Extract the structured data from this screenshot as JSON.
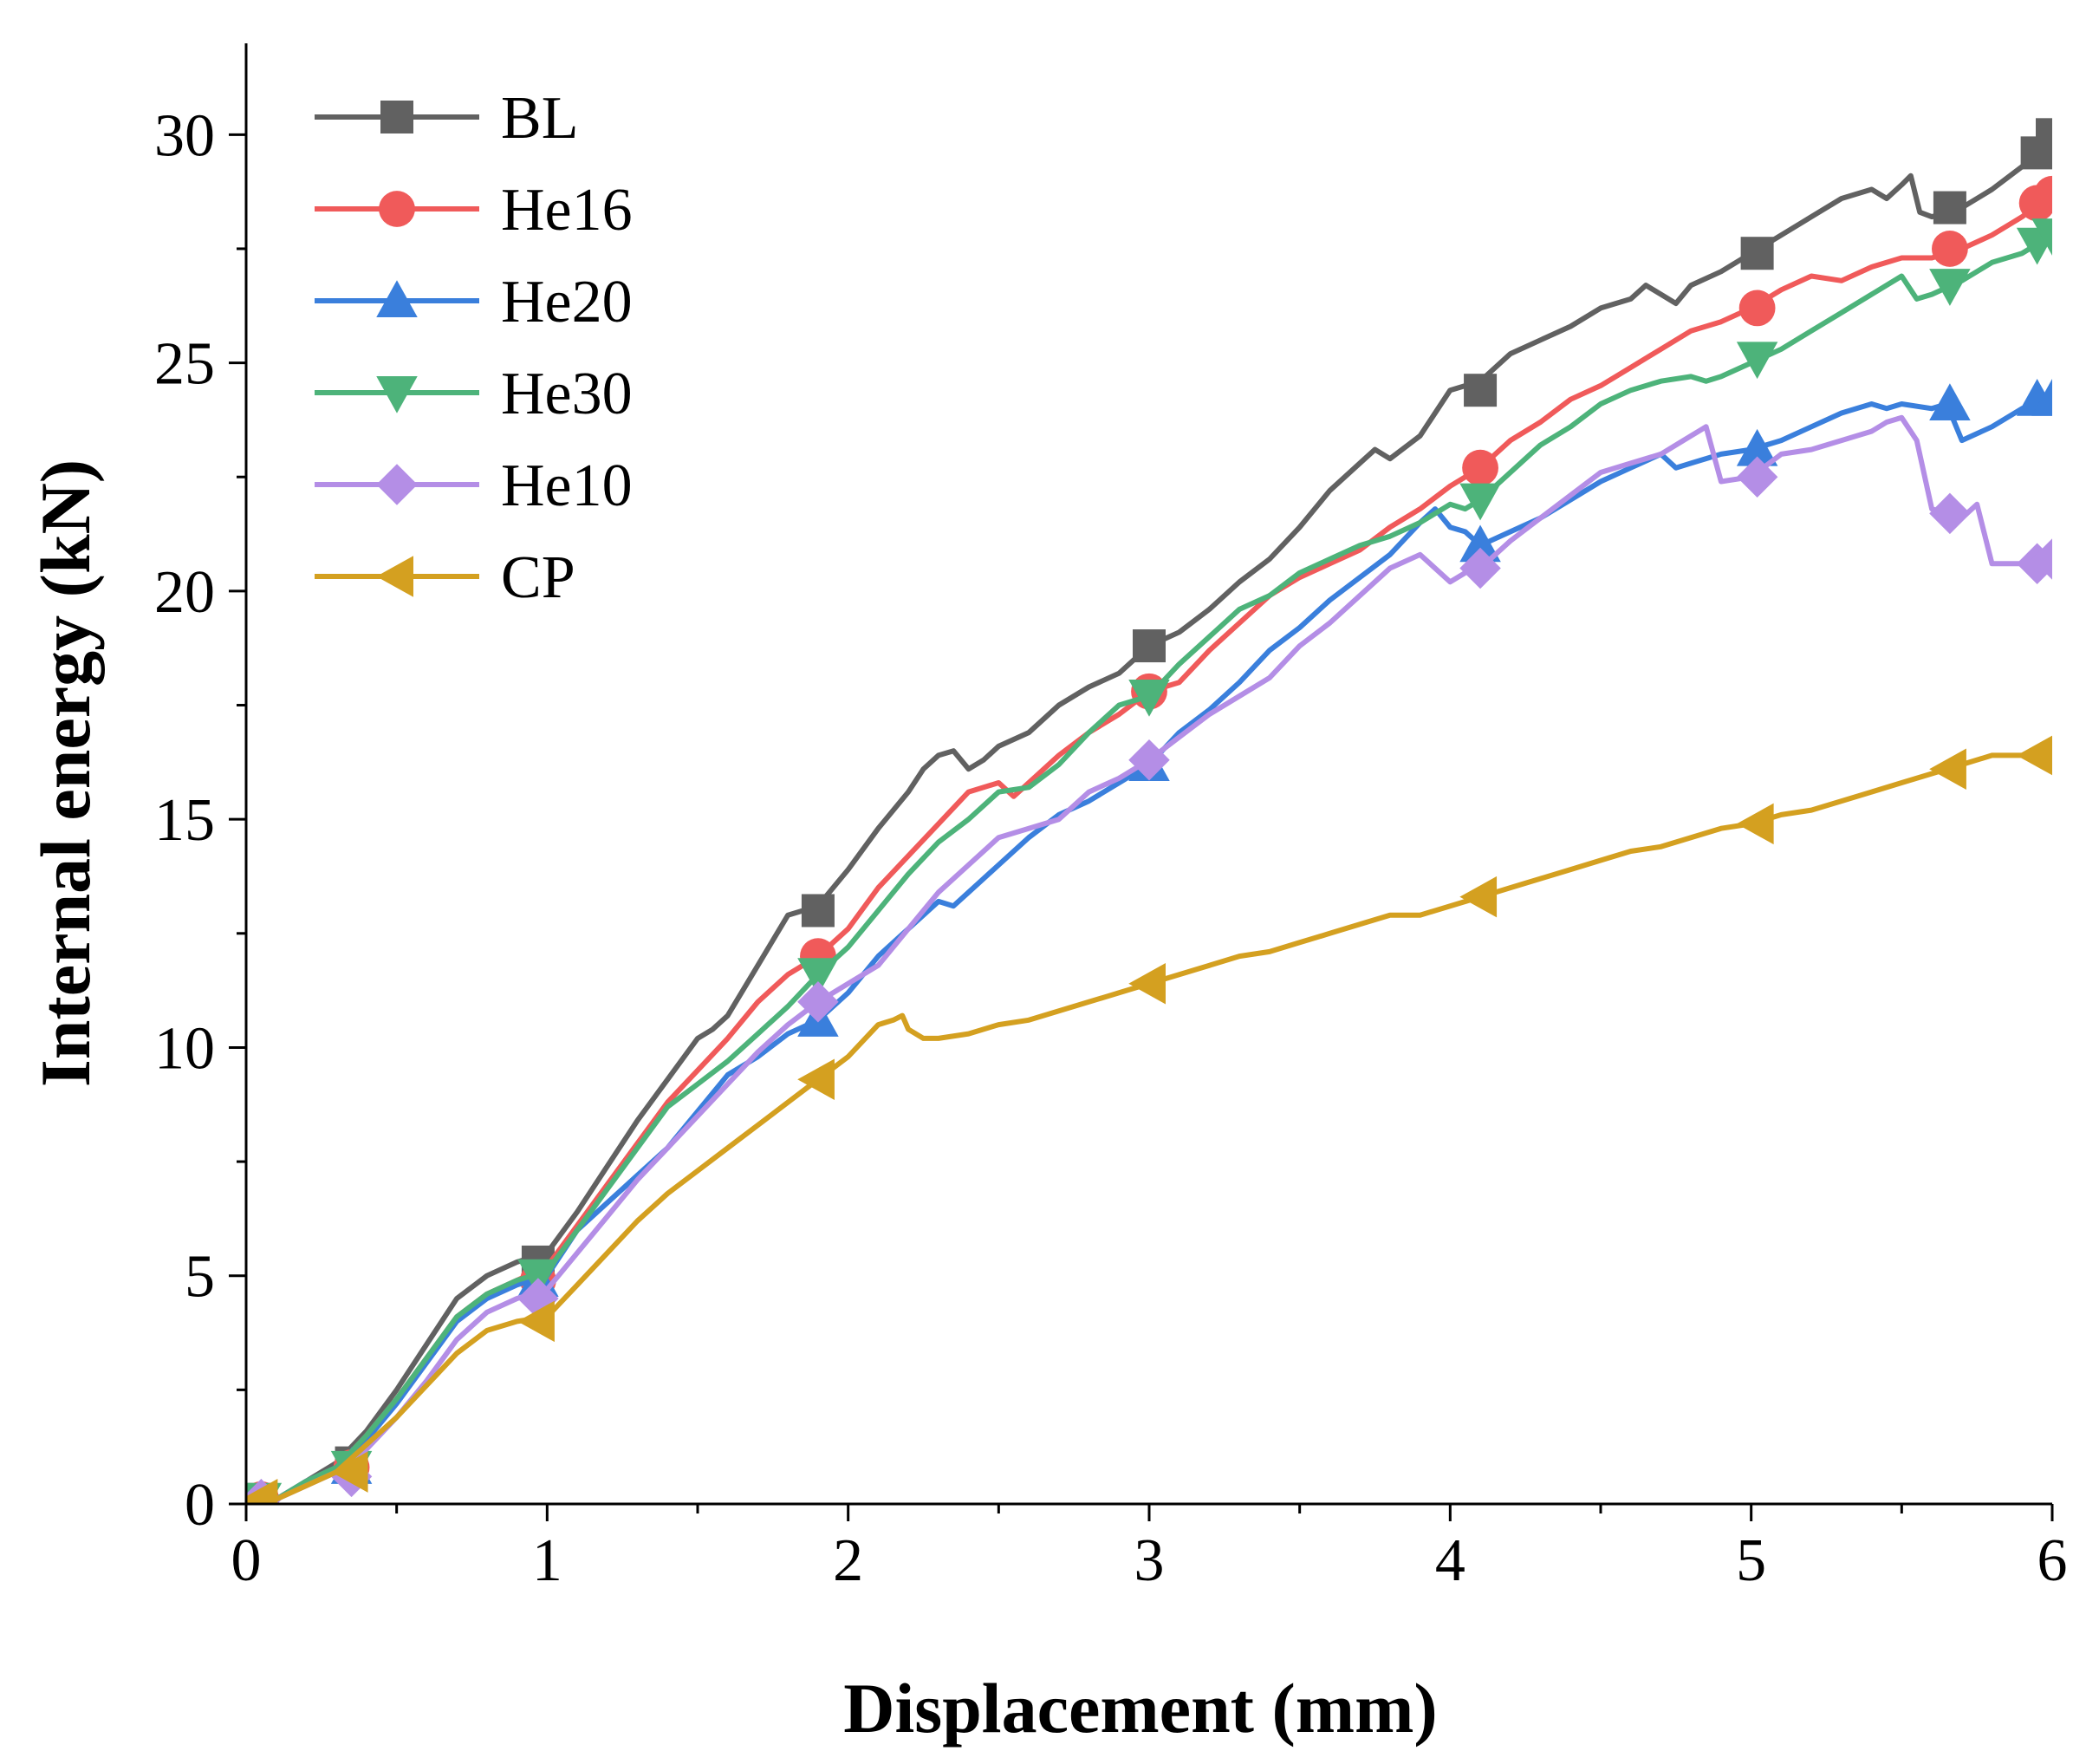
{
  "chart_data": {
    "type": "line",
    "title": "",
    "xlabel": "Displacement (mm)",
    "ylabel": "Internal energy (kN)",
    "xlim": [
      0,
      6
    ],
    "ylim": [
      0,
      32
    ],
    "xticks": [
      0,
      1,
      2,
      3,
      4,
      5,
      6
    ],
    "xtick_labels": [
      "0",
      "1",
      "2",
      "3",
      "4",
      "5",
      "6"
    ],
    "yticks": [
      0,
      5,
      10,
      15,
      20,
      25,
      30
    ],
    "ytick_labels": [
      "0",
      "5",
      "10",
      "15",
      "20",
      "25",
      "30"
    ],
    "grid": false,
    "legend_position": "top-left",
    "series": [
      {
        "name": "BL",
        "color": "#616161",
        "marker": "square",
        "x": [
          0,
          0.1,
          0.2,
          0.3,
          0.4,
          0.5,
          0.6,
          0.7,
          0.8,
          0.9,
          1.0,
          1.1,
          1.2,
          1.3,
          1.4,
          1.5,
          1.55,
          1.6,
          1.7,
          1.8,
          1.9,
          2.0,
          2.1,
          2.2,
          2.25,
          2.3,
          2.35,
          2.4,
          2.45,
          2.5,
          2.6,
          2.7,
          2.8,
          2.9,
          3.0,
          3.1,
          3.2,
          3.3,
          3.4,
          3.5,
          3.6,
          3.7,
          3.75,
          3.8,
          3.9,
          4.0,
          4.1,
          4.2,
          4.3,
          4.4,
          4.5,
          4.6,
          4.65,
          4.7,
          4.75,
          4.8,
          4.9,
          5.0,
          5.1,
          5.2,
          5.3,
          5.4,
          5.45,
          5.5,
          5.53,
          5.56,
          5.6,
          5.7,
          5.8,
          5.9,
          6.0
        ],
        "y": [
          0,
          0.1,
          0.5,
          0.9,
          1.6,
          2.5,
          3.5,
          4.5,
          5.0,
          5.3,
          5.5,
          6.4,
          7.4,
          8.4,
          9.3,
          10.2,
          10.4,
          10.7,
          11.8,
          12.9,
          13.1,
          13.9,
          14.8,
          15.6,
          16.1,
          16.4,
          16.5,
          16.1,
          16.3,
          16.6,
          16.9,
          17.5,
          17.9,
          18.2,
          18.8,
          19.1,
          19.6,
          20.2,
          20.7,
          21.4,
          22.2,
          22.8,
          23.1,
          22.9,
          23.4,
          24.4,
          24.6,
          25.2,
          25.5,
          25.8,
          26.2,
          26.4,
          26.7,
          26.5,
          26.3,
          26.7,
          27.0,
          27.4,
          27.8,
          28.2,
          28.6,
          28.8,
          28.6,
          28.9,
          29.1,
          28.3,
          28.2,
          28.4,
          28.8,
          29.3,
          30.0
        ],
        "markers_x": [
          0.05,
          0.35,
          0.97,
          1.9,
          3.0,
          4.1,
          5.02,
          5.66,
          5.95,
          6.0
        ],
        "markers_y": [
          0.1,
          0.9,
          5.3,
          13.0,
          18.8,
          24.4,
          27.4,
          28.4,
          29.6,
          30.0
        ]
      },
      {
        "name": "He16",
        "color": "#f05a5a",
        "marker": "circle",
        "x": [
          0,
          0.1,
          0.2,
          0.3,
          0.4,
          0.5,
          0.6,
          0.7,
          0.8,
          0.9,
          1.0,
          1.1,
          1.2,
          1.3,
          1.4,
          1.5,
          1.6,
          1.7,
          1.8,
          1.9,
          2.0,
          2.1,
          2.2,
          2.3,
          2.4,
          2.5,
          2.55,
          2.6,
          2.7,
          2.8,
          2.9,
          3.0,
          3.1,
          3.2,
          3.3,
          3.4,
          3.5,
          3.6,
          3.7,
          3.8,
          3.9,
          4.0,
          4.1,
          4.2,
          4.3,
          4.4,
          4.5,
          4.6,
          4.7,
          4.8,
          4.9,
          5.0,
          5.1,
          5.2,
          5.3,
          5.4,
          5.5,
          5.6,
          5.7,
          5.8,
          5.9,
          6.0
        ],
        "y": [
          0,
          0.1,
          0.5,
          0.8,
          1.5,
          2.3,
          3.2,
          4.1,
          4.6,
          4.9,
          5.2,
          6.1,
          7.0,
          7.9,
          8.8,
          9.5,
          10.2,
          11.0,
          11.6,
          12.0,
          12.6,
          13.5,
          14.2,
          14.9,
          15.6,
          15.8,
          15.5,
          15.8,
          16.4,
          16.9,
          17.3,
          17.8,
          18.0,
          18.7,
          19.3,
          19.9,
          20.3,
          20.6,
          20.9,
          21.4,
          21.8,
          22.3,
          22.7,
          23.3,
          23.7,
          24.2,
          24.5,
          24.9,
          25.3,
          25.7,
          25.9,
          26.2,
          26.6,
          26.9,
          26.8,
          27.1,
          27.3,
          27.3,
          27.5,
          27.8,
          28.2,
          28.7
        ],
        "markers_x": [
          0.05,
          0.35,
          0.97,
          1.9,
          3.0,
          4.1,
          5.02,
          5.66,
          5.95,
          6.0
        ],
        "markers_y": [
          0.1,
          0.8,
          4.9,
          12.0,
          17.8,
          22.7,
          26.2,
          27.5,
          28.5,
          28.7
        ]
      },
      {
        "name": "He20",
        "color": "#3a7fdc",
        "marker": "triangle-up",
        "x": [
          0,
          0.1,
          0.2,
          0.3,
          0.4,
          0.5,
          0.6,
          0.7,
          0.8,
          0.9,
          1.0,
          1.1,
          1.2,
          1.3,
          1.4,
          1.5,
          1.6,
          1.7,
          1.8,
          1.9,
          2.0,
          2.1,
          2.2,
          2.3,
          2.35,
          2.4,
          2.5,
          2.6,
          2.7,
          2.8,
          2.9,
          3.0,
          3.1,
          3.2,
          3.3,
          3.4,
          3.5,
          3.6,
          3.7,
          3.8,
          3.9,
          3.95,
          4.0,
          4.05,
          4.1,
          4.2,
          4.3,
          4.4,
          4.5,
          4.6,
          4.7,
          4.75,
          4.8,
          4.9,
          5.0,
          5.1,
          5.2,
          5.3,
          5.4,
          5.45,
          5.5,
          5.6,
          5.65,
          5.7,
          5.8,
          5.9,
          6.0
        ],
        "y": [
          0,
          0.1,
          0.5,
          0.8,
          1.4,
          2.2,
          3.1,
          4.0,
          4.5,
          4.8,
          5.0,
          6.0,
          6.6,
          7.2,
          7.8,
          8.6,
          9.4,
          9.8,
          10.3,
          10.6,
          11.2,
          12.0,
          12.6,
          13.2,
          13.1,
          13.4,
          14.0,
          14.6,
          15.1,
          15.4,
          15.8,
          16.2,
          16.9,
          17.4,
          18.0,
          18.7,
          19.2,
          19.8,
          20.3,
          20.8,
          21.5,
          21.8,
          21.4,
          21.3,
          21.0,
          21.3,
          21.6,
          22.0,
          22.4,
          22.7,
          23.0,
          22.7,
          22.8,
          23.0,
          23.1,
          23.3,
          23.6,
          23.9,
          24.1,
          24.0,
          24.1,
          24.0,
          24.1,
          23.3,
          23.6,
          24.0,
          24.2
        ],
        "markers_x": [
          0.05,
          0.35,
          0.97,
          1.9,
          3.0,
          4.1,
          5.02,
          5.66,
          5.95,
          6.0
        ],
        "markers_y": [
          0.1,
          0.8,
          4.9,
          10.6,
          16.2,
          21.0,
          23.1,
          24.1,
          24.2,
          24.2
        ]
      },
      {
        "name": "He30",
        "color": "#4db37a",
        "marker": "triangle-down",
        "x": [
          0,
          0.1,
          0.2,
          0.3,
          0.4,
          0.5,
          0.6,
          0.7,
          0.8,
          0.9,
          1.0,
          1.1,
          1.2,
          1.3,
          1.4,
          1.5,
          1.6,
          1.7,
          1.8,
          1.9,
          2.0,
          2.1,
          2.2,
          2.3,
          2.4,
          2.5,
          2.6,
          2.7,
          2.8,
          2.9,
          3.0,
          3.1,
          3.2,
          3.3,
          3.4,
          3.5,
          3.6,
          3.7,
          3.8,
          3.9,
          4.0,
          4.05,
          4.1,
          4.2,
          4.3,
          4.4,
          4.5,
          4.6,
          4.7,
          4.8,
          4.85,
          4.9,
          5.0,
          5.1,
          5.2,
          5.3,
          5.4,
          5.5,
          5.55,
          5.6,
          5.7,
          5.8,
          5.9,
          6.0
        ],
        "y": [
          0,
          0.1,
          0.5,
          0.8,
          1.5,
          2.3,
          3.2,
          4.1,
          4.6,
          4.9,
          5.1,
          6.0,
          6.9,
          7.8,
          8.7,
          9.2,
          9.7,
          10.3,
          10.9,
          11.6,
          12.2,
          13.0,
          13.8,
          14.5,
          15.0,
          15.6,
          15.7,
          16.2,
          16.9,
          17.5,
          17.7,
          18.4,
          19.0,
          19.6,
          19.9,
          20.4,
          20.7,
          21.0,
          21.2,
          21.5,
          21.9,
          21.8,
          22.0,
          22.6,
          23.2,
          23.6,
          24.1,
          24.4,
          24.6,
          24.7,
          24.6,
          24.7,
          25.0,
          25.3,
          25.7,
          26.1,
          26.5,
          26.9,
          26.4,
          26.5,
          26.8,
          27.2,
          27.4,
          27.8
        ],
        "markers_x": [
          0.05,
          0.35,
          0.97,
          1.9,
          3.0,
          4.1,
          5.02,
          5.66,
          5.95,
          6.0
        ],
        "markers_y": [
          0.1,
          0.8,
          5.0,
          11.6,
          17.7,
          22.0,
          25.1,
          26.7,
          27.6,
          27.8
        ]
      },
      {
        "name": "He10",
        "color": "#b48ee6",
        "marker": "diamond",
        "x": [
          0,
          0.1,
          0.2,
          0.3,
          0.4,
          0.5,
          0.6,
          0.7,
          0.8,
          0.9,
          1.0,
          1.1,
          1.2,
          1.3,
          1.4,
          1.5,
          1.6,
          1.7,
          1.8,
          1.9,
          2.0,
          2.1,
          2.2,
          2.3,
          2.4,
          2.5,
          2.6,
          2.7,
          2.8,
          2.9,
          3.0,
          3.1,
          3.2,
          3.3,
          3.4,
          3.5,
          3.6,
          3.7,
          3.8,
          3.9,
          4.0,
          4.05,
          4.1,
          4.2,
          4.3,
          4.4,
          4.5,
          4.6,
          4.7,
          4.8,
          4.85,
          4.9,
          5.0,
          5.1,
          5.2,
          5.3,
          5.4,
          5.45,
          5.5,
          5.55,
          5.6,
          5.7,
          5.75,
          5.8,
          5.9,
          6.0
        ],
        "y": [
          0,
          0.1,
          0.4,
          0.7,
          1.2,
          1.9,
          2.7,
          3.6,
          4.2,
          4.5,
          4.7,
          5.5,
          6.3,
          7.1,
          7.8,
          8.5,
          9.2,
          9.9,
          10.5,
          11.0,
          11.4,
          11.8,
          12.6,
          13.4,
          14.0,
          14.6,
          14.8,
          15.0,
          15.6,
          15.9,
          16.3,
          16.8,
          17.3,
          17.7,
          18.1,
          18.8,
          19.3,
          19.9,
          20.5,
          20.8,
          20.2,
          20.4,
          20.5,
          21.1,
          21.6,
          22.1,
          22.6,
          22.8,
          23.0,
          23.4,
          23.6,
          22.4,
          22.5,
          23.0,
          23.1,
          23.3,
          23.5,
          23.7,
          23.8,
          23.3,
          21.8,
          21.6,
          21.9,
          20.6,
          20.6,
          20.7
        ],
        "markers_x": [
          0.05,
          0.35,
          0.97,
          1.9,
          3.0,
          4.1,
          5.02,
          5.66,
          5.95,
          6.0
        ],
        "markers_y": [
          0.1,
          0.6,
          4.5,
          11.0,
          16.3,
          20.5,
          22.5,
          21.7,
          20.6,
          20.7
        ]
      },
      {
        "name": "CP",
        "color": "#d4a020",
        "marker": "triangle-left",
        "x": [
          0,
          0.1,
          0.2,
          0.3,
          0.4,
          0.5,
          0.6,
          0.7,
          0.8,
          0.9,
          1.0,
          1.1,
          1.2,
          1.3,
          1.4,
          1.5,
          1.6,
          1.7,
          1.8,
          1.9,
          2.0,
          2.1,
          2.15,
          2.18,
          2.2,
          2.25,
          2.3,
          2.4,
          2.5,
          2.6,
          2.7,
          2.8,
          2.9,
          3.0,
          3.1,
          3.2,
          3.3,
          3.4,
          3.5,
          3.6,
          3.7,
          3.8,
          3.9,
          4.0,
          4.1,
          4.2,
          4.3,
          4.4,
          4.5,
          4.6,
          4.7,
          4.8,
          4.9,
          5.0,
          5.1,
          5.2,
          5.3,
          5.4,
          5.5,
          5.6,
          5.7,
          5.8,
          5.9,
          6.0
        ],
        "y": [
          0,
          0.1,
          0.4,
          0.7,
          1.3,
          1.9,
          2.6,
          3.3,
          3.8,
          4.0,
          4.1,
          4.8,
          5.5,
          6.2,
          6.8,
          7.3,
          7.8,
          8.3,
          8.8,
          9.3,
          9.8,
          10.5,
          10.6,
          10.7,
          10.4,
          10.2,
          10.2,
          10.3,
          10.5,
          10.6,
          10.8,
          11.0,
          11.2,
          11.4,
          11.6,
          11.8,
          12.0,
          12.1,
          12.3,
          12.5,
          12.7,
          12.9,
          12.9,
          13.1,
          13.3,
          13.5,
          13.7,
          13.9,
          14.1,
          14.3,
          14.4,
          14.6,
          14.8,
          14.9,
          15.1,
          15.2,
          15.4,
          15.6,
          15.8,
          16.0,
          16.2,
          16.4,
          16.4,
          16.5
        ],
        "markers_x": [
          0.05,
          0.35,
          0.97,
          1.9,
          3.0,
          4.1,
          5.02,
          5.66,
          5.95,
          6.0
        ],
        "markers_y": [
          0.1,
          0.7,
          4.0,
          9.3,
          11.4,
          13.3,
          14.9,
          16.1,
          16.4,
          16.5
        ]
      }
    ]
  }
}
